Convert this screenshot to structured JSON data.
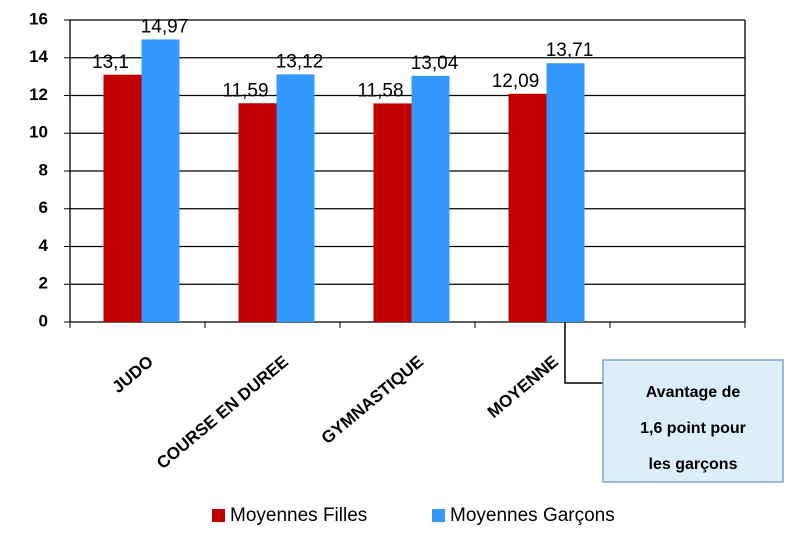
{
  "chart_data": {
    "type": "bar",
    "categories": [
      "JUDO",
      "COURSE EN DUREE",
      "GYMNASTIQUE",
      "MOYENNE",
      null
    ],
    "series": [
      {
        "name": "Moyennes Filles",
        "color": "#c00000",
        "values": [
          13.1,
          11.59,
          11.58,
          12.09,
          null
        ],
        "value_labels": [
          "13,1",
          "11,59",
          "11,58",
          "12,09",
          null
        ]
      },
      {
        "name": "Moyennes Garçons",
        "color": "#3399ff",
        "values": [
          14.97,
          13.12,
          13.04,
          13.71,
          null
        ],
        "value_labels": [
          "14,97",
          "13,12",
          "13,04",
          "13,71",
          null
        ]
      }
    ],
    "ylim": [
      0,
      16
    ],
    "yticks": [
      0,
      2,
      4,
      6,
      8,
      10,
      12,
      14,
      16
    ],
    "grid": true,
    "legend": "bottom",
    "annotation": [
      "Avantage de",
      "1,6 point pour",
      "les garçons"
    ]
  }
}
